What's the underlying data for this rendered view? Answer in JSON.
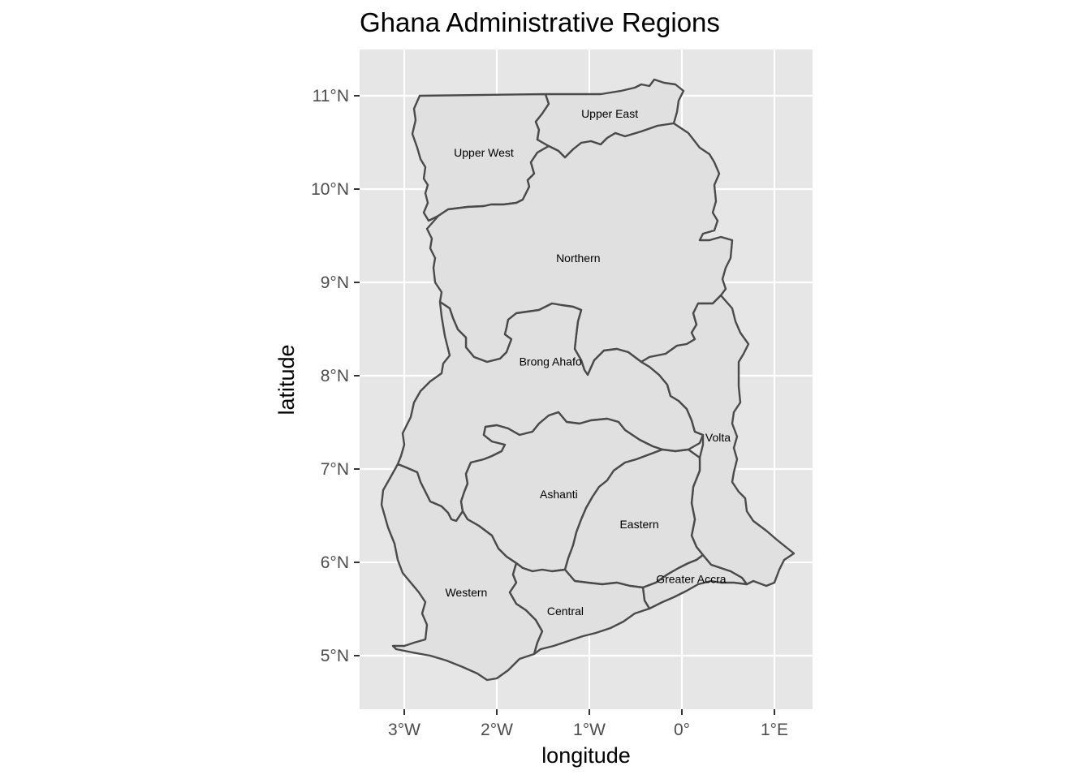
{
  "title": "Ghana Administrative Regions",
  "x_axis": {
    "label": "longitude",
    "ticks": [
      {
        "value": -3,
        "label": "3°W"
      },
      {
        "value": -2,
        "label": "2°W"
      },
      {
        "value": -1,
        "label": "1°W"
      },
      {
        "value": 0,
        "label": "0°"
      },
      {
        "value": 1,
        "label": "1°E"
      }
    ],
    "range": [
      -3.48,
      1.39
    ]
  },
  "y_axis": {
    "label": "latitude",
    "ticks": [
      {
        "value": 5,
        "label": "5°N"
      },
      {
        "value": 6,
        "label": "6°N"
      },
      {
        "value": 7,
        "label": "7°N"
      },
      {
        "value": 8,
        "label": "8°N"
      },
      {
        "value": 9,
        "label": "9°N"
      },
      {
        "value": 10,
        "label": "10°N"
      },
      {
        "value": 11,
        "label": "11°N"
      }
    ],
    "range": [
      4.42,
      11.49
    ]
  },
  "colors": {
    "panel_background": "#e6e6e6",
    "region_fill": "#e0e0e0",
    "region_stroke": "#4a4a4a",
    "grid": "#ffffff"
  },
  "regions": [
    {
      "name": "Upper West",
      "label_lon": -2.14,
      "label_lat": 10.39
    },
    {
      "name": "Upper East",
      "label_lon": -0.78,
      "label_lat": 10.81
    },
    {
      "name": "Northern",
      "label_lon": -1.12,
      "label_lat": 9.26
    },
    {
      "name": "Brong Ahafo",
      "label_lon": -1.42,
      "label_lat": 8.15
    },
    {
      "name": "Volta",
      "label_lon": 0.39,
      "label_lat": 7.34
    },
    {
      "name": "Ashanti",
      "label_lon": -1.33,
      "label_lat": 6.73
    },
    {
      "name": "Eastern",
      "label_lon": -0.46,
      "label_lat": 6.41
    },
    {
      "name": "Greater Accra",
      "label_lon": 0.1,
      "label_lat": 5.82
    },
    {
      "name": "Western",
      "label_lon": -2.33,
      "label_lat": 5.68
    },
    {
      "name": "Central",
      "label_lon": -1.26,
      "label_lat": 5.48
    }
  ]
}
